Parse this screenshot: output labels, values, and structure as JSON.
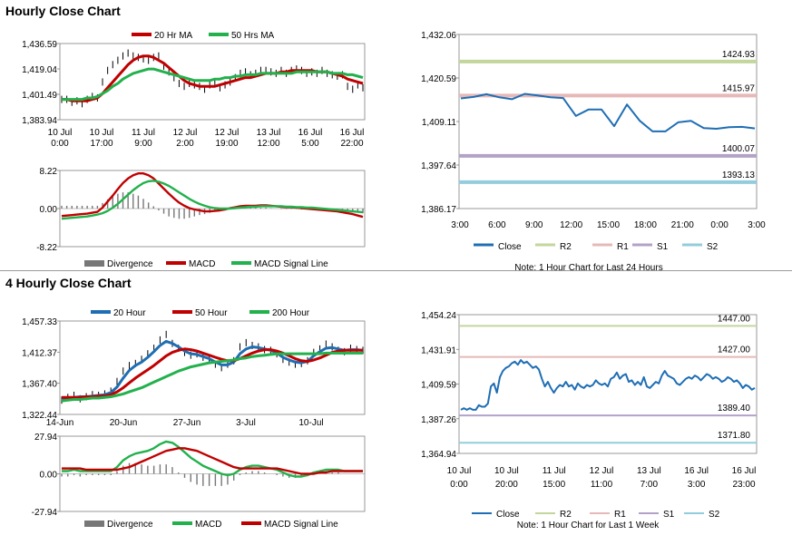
{
  "sections": [
    {
      "title": "Hourly Close Chart"
    },
    {
      "title": "4 Hourly Close Chart"
    }
  ],
  "colors": {
    "red": "#C00000",
    "green": "#22B14C",
    "blue": "#1F6EB4",
    "r2": "#C3D69B",
    "r1": "#E6B9B8",
    "s1": "#B3A2C7",
    "s2": "#93CDDD",
    "bar": "#777777",
    "price": "#000000",
    "axis": "#808080"
  },
  "chart_data": [
    {
      "id": "hourly-price",
      "type": "line",
      "legend": [
        "20 Hr MA",
        "50 Hrs MA"
      ],
      "yticks": [
        "1,436.59",
        "1,419.04",
        "1,401.49",
        "1,383.94"
      ],
      "ylim": [
        1383.94,
        1436.59
      ],
      "xticks": [
        [
          "10 Jul",
          "0:00"
        ],
        [
          "10 Jul",
          "17:00"
        ],
        [
          "11 Jul",
          "9:00"
        ],
        [
          "12 Jul",
          "2:00"
        ],
        [
          "12 Jul",
          "19:00"
        ],
        [
          "13 Jul",
          "12:00"
        ],
        [
          "16 Jul",
          "5:00"
        ],
        [
          "16 Jul",
          "22:00"
        ]
      ],
      "series": [
        {
          "name": "Close",
          "values": [
            1398,
            1398,
            1396,
            1397,
            1395,
            1398,
            1400,
            1399,
            1410,
            1418,
            1422,
            1425,
            1428,
            1430,
            1428,
            1427,
            1426,
            1425,
            1427,
            1428,
            1421,
            1417,
            1413,
            1409,
            1407,
            1409,
            1408,
            1407,
            1405,
            1408,
            1409,
            1406,
            1408,
            1410,
            1413,
            1416,
            1417,
            1415,
            1416,
            1418,
            1418,
            1417,
            1416,
            1418,
            1416,
            1418,
            1419,
            1418,
            1416,
            1417,
            1416,
            1418,
            1416,
            1415,
            1414,
            1415,
            1407,
            1405,
            1408,
            1406
          ]
        },
        {
          "name": "20 Hr MA",
          "values": [
            1398,
            1398,
            1397,
            1397,
            1397,
            1397,
            1398,
            1399,
            1402,
            1406,
            1410,
            1414,
            1418,
            1422,
            1425,
            1427,
            1428,
            1428,
            1427,
            1425,
            1423,
            1420,
            1417,
            1414,
            1411,
            1409,
            1408,
            1407,
            1407,
            1407,
            1407,
            1408,
            1409,
            1410,
            1411,
            1412,
            1413,
            1413,
            1414,
            1415,
            1416,
            1416,
            1416,
            1417,
            1417,
            1418,
            1418,
            1418,
            1418,
            1418,
            1417,
            1417,
            1417,
            1416,
            1415,
            1414,
            1412,
            1411,
            1410,
            1409
          ]
        },
        {
          "name": "50 Hrs MA",
          "values": [
            1398,
            1398,
            1398,
            1398,
            1398,
            1399,
            1399,
            1400,
            1402,
            1404,
            1407,
            1409,
            1412,
            1414,
            1416,
            1417,
            1418,
            1419,
            1419,
            1418,
            1417,
            1416,
            1415,
            1414,
            1413,
            1412,
            1411,
            1411,
            1411,
            1411,
            1412,
            1412,
            1413,
            1413,
            1414,
            1414,
            1415,
            1415,
            1415,
            1416,
            1416,
            1416,
            1416,
            1416,
            1416,
            1416,
            1417,
            1417,
            1417,
            1417,
            1417,
            1417,
            1417,
            1416,
            1416,
            1416,
            1415,
            1415,
            1414,
            1413
          ]
        }
      ]
    },
    {
      "id": "hourly-macd",
      "type": "bar+line",
      "legend": [
        "Divergence",
        "MACD",
        "MACD Signal Line"
      ],
      "yticks": [
        "8.22",
        "0.00",
        "-8.22"
      ],
      "ylim": [
        -8.22,
        8.22
      ],
      "series": [
        {
          "name": "MACD",
          "values": [
            -1.6,
            -1.5,
            -1.4,
            -1.3,
            -1.2,
            -1.1,
            -0.9,
            -0.7,
            0.2,
            1.5,
            2.8,
            4.2,
            5.5,
            6.5,
            7.2,
            7.6,
            7.6,
            7.2,
            6.5,
            5.4,
            4.3,
            3.2,
            2.2,
            1.3,
            0.6,
            0.1,
            -0.2,
            -0.4,
            -0.6,
            -0.6,
            -0.5,
            -0.4,
            -0.2,
            0.1,
            0.3,
            0.5,
            0.6,
            0.6,
            0.6,
            0.7,
            0.7,
            0.6,
            0.5,
            0.4,
            0.3,
            0.3,
            0.2,
            0.1,
            0.0,
            -0.1,
            -0.2,
            -0.3,
            -0.4,
            -0.5,
            -0.6,
            -0.8,
            -1.0,
            -1.2,
            -1.5,
            -1.8
          ]
        },
        {
          "name": "MACD Signal Line",
          "values": [
            -2.2,
            -2.1,
            -2.0,
            -1.9,
            -1.8,
            -1.7,
            -1.5,
            -1.3,
            -1.0,
            -0.5,
            0.2,
            1.0,
            2.0,
            3.0,
            4.0,
            4.8,
            5.5,
            5.9,
            6.0,
            5.8,
            5.4,
            4.9,
            4.2,
            3.5,
            2.8,
            2.1,
            1.5,
            1.0,
            0.6,
            0.3,
            0.1,
            0.0,
            0.0,
            0.0,
            0.1,
            0.2,
            0.3,
            0.4,
            0.4,
            0.5,
            0.5,
            0.5,
            0.5,
            0.5,
            0.4,
            0.4,
            0.3,
            0.3,
            0.2,
            0.2,
            0.1,
            0.0,
            -0.1,
            -0.2,
            -0.3,
            -0.4,
            -0.5,
            -0.6,
            -0.7,
            -0.8
          ]
        }
      ]
    },
    {
      "id": "hourly-close-24h",
      "type": "line",
      "yticks": [
        "1,432.06",
        "1,420.59",
        "1,409.11",
        "1,397.64",
        "1,386.17"
      ],
      "ylim": [
        1386.17,
        1432.06
      ],
      "xticks": [
        "3:00",
        "6:00",
        "9:00",
        "12:00",
        "15:00",
        "18:00",
        "21:00",
        "0:00",
        "3:00"
      ],
      "legend": [
        "Close",
        "R2",
        "R1",
        "S1",
        "S2"
      ],
      "levels": {
        "R2": 1424.93,
        "R1": 1415.97,
        "S1": 1400.07,
        "S2": 1393.13
      },
      "level_labels": {
        "R2": "1424.93",
        "R1": "1415.97",
        "S1": "1400.07",
        "S2": "1393.13"
      },
      "close": [
        1415.2,
        1415.6,
        1416.3,
        1415.5,
        1415.0,
        1416.4,
        1416.0,
        1415.5,
        1415.3,
        1410.6,
        1412.3,
        1412.3,
        1407.9,
        1413.6,
        1409.3,
        1406.5,
        1406.5,
        1408.9,
        1409.3,
        1407.4,
        1407.2,
        1407.6,
        1407.7,
        1407.3
      ],
      "note": "Note: 1 Hour Chart for Last 24 Hours"
    },
    {
      "id": "four-hourly-price",
      "type": "line",
      "legend": [
        "20 Hour",
        "50 Hour",
        "200 Hour"
      ],
      "yticks": [
        "1,457.33",
        "1,412.37",
        "1,367.40",
        "1,322.44"
      ],
      "ylim": [
        1322.44,
        1457.33
      ],
      "xticks": [
        "14-Jun",
        "20-Jun",
        "27-Jun",
        "3-Jul",
        "10-Jul"
      ],
      "series": [
        {
          "name": "Close",
          "values": [
            1343,
            1347,
            1350,
            1345,
            1348,
            1351,
            1350,
            1352,
            1356,
            1370,
            1385,
            1393,
            1396,
            1402,
            1410,
            1418,
            1430,
            1438,
            1425,
            1418,
            1412,
            1408,
            1410,
            1405,
            1402,
            1395,
            1390,
            1395,
            1400,
            1420,
            1426,
            1422,
            1420,
            1416,
            1415,
            1410,
            1402,
            1398,
            1395,
            1396,
            1400,
            1412,
            1417,
            1424,
            1420,
            1415,
            1413,
            1418,
            1416,
            1415
          ]
        },
        {
          "name": "20 Hour",
          "values": [
            1343,
            1345,
            1347,
            1348,
            1348,
            1349,
            1350,
            1351,
            1354,
            1362,
            1375,
            1386,
            1393,
            1398,
            1405,
            1413,
            1422,
            1428,
            1425,
            1420,
            1414,
            1410,
            1409,
            1406,
            1403,
            1398,
            1394,
            1394,
            1398,
            1410,
            1417,
            1420,
            1419,
            1417,
            1415,
            1411,
            1405,
            1401,
            1398,
            1397,
            1399,
            1407,
            1413,
            1418,
            1419,
            1417,
            1415,
            1416,
            1416,
            1415
          ]
        },
        {
          "name": "50 Hour",
          "values": [
            1347,
            1347,
            1347,
            1347,
            1348,
            1348,
            1349,
            1349,
            1351,
            1355,
            1361,
            1368,
            1375,
            1381,
            1387,
            1393,
            1400,
            1407,
            1412,
            1415,
            1417,
            1416,
            1414,
            1411,
            1408,
            1405,
            1402,
            1400,
            1400,
            1403,
            1407,
            1411,
            1414,
            1416,
            1416,
            1414,
            1411,
            1407,
            1403,
            1400,
            1399,
            1401,
            1404,
            1408,
            1412,
            1414,
            1415,
            1415,
            1415,
            1415
          ]
        },
        {
          "name": "200 Hour",
          "values": [
            1342,
            1343,
            1344,
            1344,
            1345,
            1346,
            1346,
            1347,
            1348,
            1350,
            1352,
            1355,
            1358,
            1361,
            1365,
            1369,
            1373,
            1377,
            1381,
            1385,
            1388,
            1391,
            1393,
            1395,
            1397,
            1398,
            1399,
            1400,
            1401,
            1403,
            1404,
            1406,
            1407,
            1408,
            1409,
            1410,
            1410,
            1410,
            1410,
            1410,
            1410,
            1410,
            1410,
            1411,
            1411,
            1411,
            1411,
            1411,
            1411,
            1411
          ]
        }
      ]
    },
    {
      "id": "four-hourly-macd",
      "type": "bar+line",
      "legend": [
        "Divergence",
        "MACD",
        "MACD Signal Line"
      ],
      "yticks": [
        "27.94",
        "0.00",
        "-27.94"
      ],
      "ylim": [
        -27.94,
        27.94
      ],
      "series": [
        {
          "name": "MACD",
          "values": [
            2,
            2,
            3,
            2,
            2,
            2,
            2,
            2,
            2,
            5,
            10,
            13,
            15,
            16,
            17,
            19,
            22,
            24,
            23,
            20,
            16,
            12,
            9,
            6,
            4,
            2,
            0,
            -1,
            0,
            3,
            5,
            6,
            6,
            5,
            4,
            3,
            1,
            -1,
            -2,
            -2,
            -1,
            1,
            2,
            3,
            3,
            3,
            2,
            2,
            2,
            2
          ]
        },
        {
          "name": "MACD Signal Line",
          "values": [
            4,
            4,
            4,
            4,
            3,
            3,
            3,
            3,
            3,
            3,
            4,
            5,
            7,
            9,
            11,
            13,
            15,
            17,
            18,
            19,
            19,
            18,
            17,
            15,
            13,
            11,
            9,
            7,
            5,
            4,
            4,
            4,
            4,
            4,
            4,
            4,
            3,
            2,
            1,
            0,
            0,
            0,
            1,
            1,
            2,
            2,
            2,
            2,
            2,
            2
          ]
        }
      ]
    },
    {
      "id": "four-hourly-close-week",
      "type": "line",
      "yticks": [
        "1,454.24",
        "1,431.91",
        "1,409.59",
        "1,387.26",
        "1,364.94"
      ],
      "ylim": [
        1364.94,
        1454.24
      ],
      "xticks": [
        [
          "10 Jul",
          "0:00"
        ],
        [
          "10 Jul",
          "20:00"
        ],
        [
          "11 Jul",
          "15:00"
        ],
        [
          "12 Jul",
          "11:00"
        ],
        [
          "13 Jul",
          "7:00"
        ],
        [
          "16 Jul",
          "3:00"
        ],
        [
          "16 Jul",
          "23:00"
        ]
      ],
      "legend": [
        "Close",
        "R2",
        "R1",
        "S1",
        "S2"
      ],
      "levels": {
        "R2": 1447.0,
        "R1": 1427.0,
        "S1": 1389.4,
        "S2": 1371.8
      },
      "level_labels": {
        "R2": "1447.00",
        "R1": "1427.00",
        "S1": "1389.40",
        "S2": "1371.80"
      },
      "close": [
        1393,
        1394,
        1393,
        1394,
        1393,
        1393,
        1396,
        1395,
        1395,
        1397,
        1408,
        1410,
        1404,
        1414,
        1418,
        1420,
        1421,
        1423,
        1424,
        1422,
        1425,
        1423,
        1424,
        1422,
        1420,
        1421,
        1419,
        1413,
        1408,
        1411,
        1407,
        1404,
        1407,
        1409,
        1408,
        1411,
        1408,
        1409,
        1406,
        1410,
        1408,
        1407,
        1409,
        1408,
        1409,
        1412,
        1410,
        1409,
        1410,
        1408,
        1413,
        1414,
        1417,
        1413,
        1415,
        1416,
        1411,
        1412,
        1409,
        1411,
        1409,
        1414,
        1408,
        1407,
        1409,
        1411,
        1410,
        1415,
        1418,
        1415,
        1414,
        1413,
        1410,
        1409,
        1411,
        1413,
        1414,
        1413,
        1415,
        1414,
        1412,
        1414,
        1416,
        1415,
        1413,
        1414,
        1413,
        1411,
        1412,
        1414,
        1413,
        1411,
        1412,
        1410,
        1407,
        1409,
        1408,
        1406,
        1407
      ],
      "note": "Note: 1 Hour Chart for Last 1 Week"
    }
  ]
}
